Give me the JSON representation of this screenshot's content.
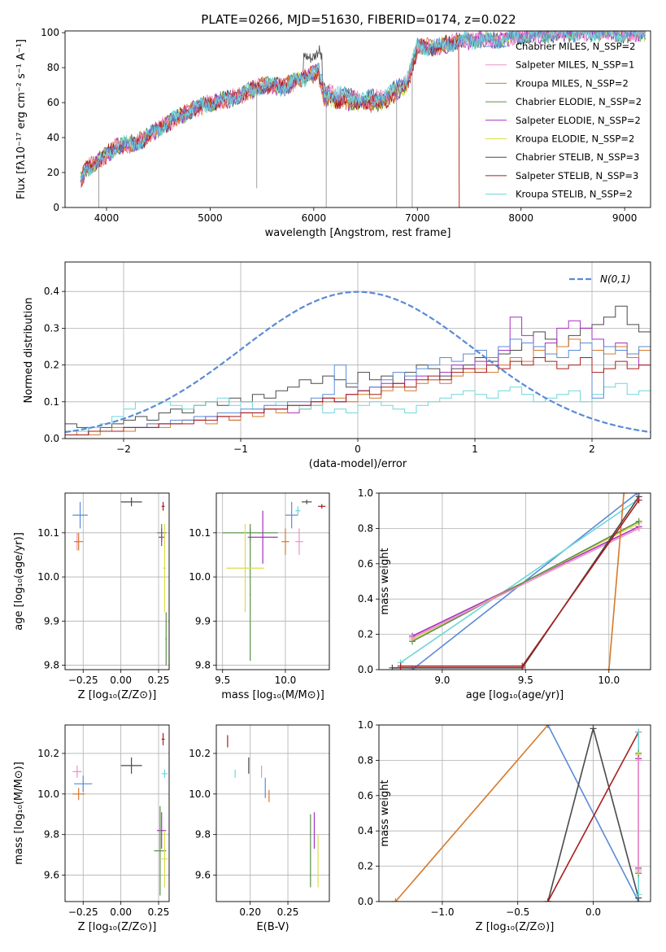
{
  "colors": {
    "chabrier_miles": "#5b8ad6",
    "salpeter_miles": "#ef8fc8",
    "kroupa_miles": "#d6792b",
    "chabrier_elodie": "#5a8f4a",
    "salpeter_elodie": "#a72fc1",
    "kroupa_elodie": "#d9de4a",
    "chabrier_stelib": "#4a4a4a",
    "salpeter_stelib": "#a81d1d",
    "kroupa_stelib": "#6fd6d9",
    "gauss": "#5b8ad6"
  },
  "chart_data": [
    {
      "type": "line",
      "title": "PLATE=0266, MJD=51630, FIBERID=0174, z=0.022",
      "xlabel": "wavelength [Angstrom, rest frame]",
      "ylabel": "Flux [fλ10⁻¹⁷ erg cm⁻² s⁻¹ A⁻¹]",
      "xlim": [
        3600,
        9250
      ],
      "ylim": [
        0,
        101
      ],
      "xticks": [
        4000,
        5000,
        6000,
        7000,
        8000,
        9000
      ],
      "yticks": [
        0,
        20,
        40,
        60,
        80,
        100
      ],
      "grid": false,
      "legend_position": "top-right",
      "legend": [
        "Chabrier MILES, N_SSP=2",
        "Salpeter MILES, N_SSP=1",
        "Kroupa MILES, N_SSP=2",
        "Chabrier ELODIE, N_SSP=2",
        "Salpeter ELODIE, N_SSP=2",
        "Kroupa ELODIE, N_SSP=2",
        "Chabrier STELIB, N_SSP=3",
        "Salpeter STELIB, N_SSP=3",
        "Kroupa STELIB, N_SSP=2"
      ],
      "series_envelope": {
        "x": [
          3750,
          3800,
          3900,
          4000,
          4100,
          4300,
          4500,
          4700,
          4900,
          5100,
          5300,
          5500,
          5700,
          5900,
          6050,
          6100,
          6300,
          6500,
          6700,
          6900,
          7000,
          7200,
          7400,
          7600,
          7800,
          8000,
          8200,
          8500,
          8800,
          9000,
          9200
        ],
        "y": [
          15,
          22,
          26,
          30,
          35,
          37,
          45,
          52,
          58,
          61,
          64,
          70,
          69,
          74,
          78,
          66,
          64,
          62,
          64,
          74,
          92,
          92,
          95,
          96,
          96,
          98,
          99,
          100,
          100,
          99,
          100
        ]
      }
    },
    {
      "type": "histogram",
      "xlabel": "(data-model)/error",
      "ylabel": "Normed distribution",
      "xlim": [
        -2.5,
        2.5
      ],
      "ylim": [
        0,
        0.48
      ],
      "xticks": [
        -2,
        -1,
        0,
        1,
        2
      ],
      "yticks": [
        0.0,
        0.1,
        0.2,
        0.3,
        0.4
      ],
      "grid": true,
      "legend_position": "top-right",
      "legend": [
        "N(0,1)"
      ],
      "gauss": {
        "mu": 0,
        "sigma": 1
      },
      "bin_width": 0.1,
      "hist_start": -2.5,
      "hist_levels": {
        "chabrier_stelib": [
          0.04,
          0.03,
          0.02,
          0.03,
          0.04,
          0.05,
          0.06,
          0.05,
          0.07,
          0.08,
          0.07,
          0.09,
          0.1,
          0.09,
          0.11,
          0.1,
          0.12,
          0.11,
          0.13,
          0.14,
          0.16,
          0.15,
          0.17,
          0.16,
          0.14,
          0.18,
          0.16,
          0.17,
          0.15,
          0.18,
          0.2,
          0.19,
          0.17,
          0.19,
          0.2,
          0.22,
          0.21,
          0.23,
          0.24,
          0.26,
          0.29,
          0.27,
          0.25,
          0.28,
          0.3,
          0.31,
          0.33,
          0.36,
          0.31,
          0.29
        ],
        "salpeter_elodie": [
          0.01,
          0.01,
          0.02,
          0.02,
          0.02,
          0.03,
          0.03,
          0.03,
          0.04,
          0.04,
          0.05,
          0.05,
          0.06,
          0.06,
          0.05,
          0.07,
          0.07,
          0.08,
          0.08,
          0.07,
          0.09,
          0.1,
          0.11,
          0.1,
          0.12,
          0.13,
          0.14,
          0.15,
          0.14,
          0.16,
          0.17,
          0.16,
          0.18,
          0.2,
          0.19,
          0.21,
          0.2,
          0.24,
          0.33,
          0.28,
          0.22,
          0.26,
          0.3,
          0.32,
          0.3,
          0.27,
          0.25,
          0.26,
          0.22,
          0.2
        ],
        "kroupa_miles": [
          0.01,
          0.02,
          0.01,
          0.02,
          0.03,
          0.02,
          0.03,
          0.04,
          0.03,
          0.04,
          0.05,
          0.05,
          0.04,
          0.06,
          0.05,
          0.07,
          0.06,
          0.08,
          0.07,
          0.09,
          0.08,
          0.09,
          0.1,
          0.11,
          0.1,
          0.12,
          0.11,
          0.13,
          0.14,
          0.13,
          0.15,
          0.16,
          0.15,
          0.17,
          0.18,
          0.19,
          0.18,
          0.2,
          0.22,
          0.21,
          0.24,
          0.23,
          0.25,
          0.27,
          0.26,
          0.24,
          0.23,
          0.25,
          0.22,
          0.24
        ],
        "kroupa_stelib": [
          0.02,
          0.02,
          0.03,
          0.04,
          0.06,
          0.08,
          0.1,
          0.1,
          0.1,
          0.09,
          0.08,
          0.09,
          0.1,
          0.11,
          0.09,
          0.1,
          0.08,
          0.09,
          0.1,
          0.09,
          0.08,
          0.09,
          0.07,
          0.08,
          0.07,
          0.09,
          0.1,
          0.09,
          0.08,
          0.07,
          0.09,
          0.1,
          0.11,
          0.12,
          0.13,
          0.12,
          0.11,
          0.13,
          0.14,
          0.12,
          0.1,
          0.11,
          0.12,
          0.13,
          0.1,
          0.12,
          0.14,
          0.15,
          0.12,
          0.13
        ],
        "chabrier_miles": [
          0.01,
          0.01,
          0.02,
          0.02,
          0.02,
          0.03,
          0.03,
          0.04,
          0.04,
          0.05,
          0.05,
          0.06,
          0.06,
          0.07,
          0.07,
          0.08,
          0.08,
          0.09,
          0.09,
          0.1,
          0.1,
          0.11,
          0.12,
          0.2,
          0.15,
          0.13,
          0.14,
          0.16,
          0.18,
          0.17,
          0.19,
          0.2,
          0.22,
          0.21,
          0.23,
          0.24,
          0.22,
          0.25,
          0.27,
          0.26,
          0.25,
          0.23,
          0.22,
          0.24,
          0.26,
          0.11,
          0.25,
          0.24,
          0.23,
          0.25
        ],
        "salpeter_stelib": [
          0.01,
          0.01,
          0.02,
          0.02,
          0.02,
          0.03,
          0.03,
          0.03,
          0.04,
          0.04,
          0.04,
          0.05,
          0.05,
          0.06,
          0.06,
          0.07,
          0.07,
          0.08,
          0.08,
          0.09,
          0.09,
          0.1,
          0.11,
          0.1,
          0.12,
          0.13,
          0.12,
          0.14,
          0.15,
          0.14,
          0.16,
          0.17,
          0.16,
          0.18,
          0.19,
          0.18,
          0.2,
          0.19,
          0.21,
          0.2,
          0.22,
          0.21,
          0.19,
          0.2,
          0.22,
          0.18,
          0.19,
          0.21,
          0.19,
          0.2
        ]
      }
    },
    {
      "type": "errorbar",
      "xlabel": "Z [log₁₀(Z/Z⊙)]",
      "ylabel": "age  [log₁₀(age/yr)]",
      "xlim": [
        -0.37,
        0.32
      ],
      "ylim": [
        9.79,
        10.19
      ],
      "xticks": [
        -0.25,
        0.0,
        0.25
      ],
      "yticks": [
        9.8,
        9.9,
        10.0,
        10.1
      ],
      "grid": true,
      "points": [
        {
          "c": "chabrier_miles",
          "x": -0.27,
          "y": 10.14,
          "ex": 0.05,
          "ey": 0.03
        },
        {
          "c": "salpeter_miles",
          "x": -0.29,
          "y": 10.08,
          "ex": 0.01,
          "ey": 0.02
        },
        {
          "c": "kroupa_miles",
          "x": -0.28,
          "y": 10.08,
          "ex": 0.03,
          "ey": 0.02
        },
        {
          "c": "chabrier_stelib",
          "x": 0.07,
          "y": 10.17,
          "ex": 0.07,
          "ey": 0.01
        },
        {
          "c": "salpeter_stelib",
          "x": 0.28,
          "y": 10.16,
          "ex": 0.01,
          "ey": 0.01
        },
        {
          "c": "chabrier_elodie",
          "x": 0.27,
          "y": 10.1,
          "ex": 0.03,
          "ey": 0.02
        },
        {
          "c": "salpeter_elodie",
          "x": 0.27,
          "y": 10.09,
          "ex": 0.02,
          "ey": 0.02
        },
        {
          "c": "kroupa_elodie",
          "x": 0.29,
          "y": 10.02,
          "ex": 0.01,
          "ey": 0.1
        },
        {
          "c": "chabrier_elodie",
          "x": 0.3,
          "y": 9.86,
          "ex": 0.005,
          "ey": 0.06
        }
      ]
    },
    {
      "type": "errorbar",
      "xlabel": "mass [log₁₀(M/M⊙)]",
      "ylabel": "",
      "xlim": [
        9.45,
        10.35
      ],
      "ylim": [
        9.79,
        10.19
      ],
      "xticks": [
        9.5,
        10.0
      ],
      "yticks": [
        9.8,
        9.9,
        10.0,
        10.1
      ],
      "grid": true,
      "points": [
        {
          "c": "chabrier_elodie",
          "x": 9.72,
          "y": 10.1,
          "ex": 0.22,
          "ey": 0.02
        },
        {
          "c": "chabrier_elodie",
          "x": 9.72,
          "y": 9.96,
          "ex": 0.005,
          "ey": 0.15
        },
        {
          "c": "kroupa_elodie",
          "x": 9.68,
          "y": 10.02,
          "ex": 0.15,
          "ey": 0.1
        },
        {
          "c": "salpeter_elodie",
          "x": 9.82,
          "y": 10.09,
          "ex": 0.12,
          "ey": 0.06
        },
        {
          "c": "kroupa_miles",
          "x": 10.0,
          "y": 10.08,
          "ex": 0.03,
          "ey": 0.03
        },
        {
          "c": "chabrier_miles",
          "x": 10.05,
          "y": 10.14,
          "ex": 0.05,
          "ey": 0.03
        },
        {
          "c": "salpeter_miles",
          "x": 10.11,
          "y": 10.08,
          "ex": 0.03,
          "ey": 0.03
        },
        {
          "c": "kroupa_stelib",
          "x": 10.1,
          "y": 10.15,
          "ex": 0.02,
          "ey": 0.01
        },
        {
          "c": "chabrier_stelib",
          "x": 10.17,
          "y": 10.17,
          "ex": 0.04,
          "ey": 0.005
        },
        {
          "c": "salpeter_stelib",
          "x": 10.29,
          "y": 10.16,
          "ex": 0.03,
          "ey": 0.005
        }
      ]
    },
    {
      "type": "line",
      "xlabel": "age  [log₁₀(age/yr)]",
      "ylabel": "mass weight",
      "xlim": [
        8.62,
        10.25
      ],
      "ylim": [
        0,
        1
      ],
      "xticks": [
        9.0,
        9.5,
        10.0
      ],
      "yticks": [
        0.0,
        0.2,
        0.4,
        0.6,
        0.8,
        1.0
      ],
      "grid": true,
      "series": [
        {
          "c": "chabrier_miles",
          "x": [
            8.82,
            10.17
          ],
          "y": [
            0.0,
            1.0
          ]
        },
        {
          "c": "kroupa_stelib",
          "x": [
            8.75,
            10.17
          ],
          "y": [
            0.04,
            0.96
          ]
        },
        {
          "c": "salpeter_elodie",
          "x": [
            8.82,
            10.18
          ],
          "y": [
            0.19,
            0.81
          ]
        },
        {
          "c": "kroupa_elodie",
          "x": [
            8.82,
            10.18
          ],
          "y": [
            0.17,
            0.83
          ]
        },
        {
          "c": "chabrier_elodie",
          "x": [
            8.82,
            10.18
          ],
          "y": [
            0.16,
            0.84
          ]
        },
        {
          "c": "salpeter_miles",
          "x": [
            8.82,
            10.18
          ],
          "y": [
            0.18,
            0.8
          ]
        },
        {
          "c": "kroupa_miles",
          "x": [
            10.0,
            10.09
          ],
          "y": [
            0.0,
            1.0
          ]
        },
        {
          "c": "chabrier_stelib",
          "x": [
            8.7,
            9.48,
            10.18
          ],
          "y": [
            0.01,
            0.01,
            0.98
          ]
        },
        {
          "c": "salpeter_stelib",
          "x": [
            8.75,
            9.48,
            10.18
          ],
          "y": [
            0.02,
            0.02,
            0.96
          ]
        }
      ]
    },
    {
      "type": "errorbar",
      "xlabel": "Z [log₁₀(Z/Z⊙)]",
      "ylabel": "mass [log₁₀(M/M⊙)]",
      "xlim": [
        -0.37,
        0.32
      ],
      "ylim": [
        9.47,
        10.34
      ],
      "xticks": [
        -0.25,
        0.0,
        0.25
      ],
      "yticks": [
        9.6,
        9.8,
        10.0,
        10.2
      ],
      "grid": true,
      "points": [
        {
          "c": "chabrier_stelib",
          "x": 0.07,
          "y": 10.14,
          "ex": 0.07,
          "ey": 0.04
        },
        {
          "c": "salpeter_miles",
          "x": -0.29,
          "y": 10.11,
          "ex": 0.03,
          "ey": 0.03
        },
        {
          "c": "chabrier_miles",
          "x": -0.25,
          "y": 10.05,
          "ex": 0.06,
          "ey": 0.04
        },
        {
          "c": "kroupa_miles",
          "x": -0.28,
          "y": 10.0,
          "ex": 0.04,
          "ey": 0.03
        },
        {
          "c": "salpeter_stelib",
          "x": 0.28,
          "y": 10.27,
          "ex": 0.01,
          "ey": 0.03
        },
        {
          "c": "kroupa_stelib",
          "x": 0.29,
          "y": 10.1,
          "ex": 0.02,
          "ey": 0.02
        },
        {
          "c": "salpeter_elodie",
          "x": 0.27,
          "y": 9.82,
          "ex": 0.03,
          "ey": 0.09
        },
        {
          "c": "chabrier_elodie",
          "x": 0.26,
          "y": 9.72,
          "ex": 0.04,
          "ey": 0.22
        },
        {
          "c": "kroupa_elodie",
          "x": 0.29,
          "y": 9.68,
          "ex": 0.02,
          "ey": 0.14
        }
      ]
    },
    {
      "type": "errorbar",
      "xlabel": "E(B-V)",
      "ylabel": "",
      "xlim": [
        0.155,
        0.305
      ],
      "ylim": [
        9.47,
        10.34
      ],
      "xticks": [
        0.2,
        0.25
      ],
      "yticks": [
        9.6,
        9.8,
        10.0,
        10.2
      ],
      "grid": true,
      "points": [
        {
          "c": "salpeter_stelib",
          "x": 0.17,
          "y": 10.26,
          "ex": 0,
          "ey": 0.03
        },
        {
          "c": "kroupa_stelib",
          "x": 0.18,
          "y": 10.1,
          "ex": 0,
          "ey": 0.02
        },
        {
          "c": "chabrier_stelib",
          "x": 0.198,
          "y": 10.14,
          "ex": 0,
          "ey": 0.04
        },
        {
          "c": "salpeter_miles",
          "x": 0.215,
          "y": 10.11,
          "ex": 0,
          "ey": 0.03
        },
        {
          "c": "chabrier_miles",
          "x": 0.22,
          "y": 10.03,
          "ex": 0,
          "ey": 0.05
        },
        {
          "c": "kroupa_miles",
          "x": 0.225,
          "y": 9.99,
          "ex": 0,
          "ey": 0.03
        },
        {
          "c": "chabrier_elodie",
          "x": 0.28,
          "y": 9.72,
          "ex": 0,
          "ey": 0.18
        },
        {
          "c": "salpeter_elodie",
          "x": 0.285,
          "y": 9.82,
          "ex": 0,
          "ey": 0.09
        },
        {
          "c": "kroupa_elodie",
          "x": 0.29,
          "y": 9.67,
          "ex": 0,
          "ey": 0.13
        }
      ]
    },
    {
      "type": "line",
      "xlabel": "Z [log₁₀(Z/Z⊙)]",
      "ylabel": "mass weight",
      "xlim": [
        -1.42,
        0.38
      ],
      "ylim": [
        0,
        1
      ],
      "xticks": [
        -1.0,
        -0.5,
        0.0
      ],
      "yticks": [
        0.0,
        0.2,
        0.4,
        0.6,
        0.8,
        1.0
      ],
      "grid": true,
      "series": [
        {
          "c": "kroupa_miles",
          "x": [
            -1.31,
            -0.3
          ],
          "y": [
            0.0,
            1.0
          ]
        },
        {
          "c": "chabrier_miles",
          "x": [
            -0.3,
            0.3
          ],
          "y": [
            1.0,
            0.0
          ]
        },
        {
          "c": "chabrier_stelib",
          "x": [
            -0.3,
            0.0,
            0.3
          ],
          "y": [
            0.0,
            0.98,
            0.02
          ]
        },
        {
          "c": "salpeter_stelib",
          "x": [
            -0.3,
            0.3
          ],
          "y": [
            0.0,
            0.96
          ]
        },
        {
          "c": "kroupa_stelib",
          "x": [
            0.3,
            0.3
          ],
          "y": [
            0.04,
            0.96
          ]
        },
        {
          "c": "chabrier_elodie",
          "x": [
            0.3,
            0.3
          ],
          "y": [
            0.16,
            0.84
          ]
        },
        {
          "c": "kroupa_elodie",
          "x": [
            0.3,
            0.3
          ],
          "y": [
            0.17,
            0.83
          ]
        },
        {
          "c": "salpeter_elodie",
          "x": [
            0.3,
            0.3
          ],
          "y": [
            0.19,
            0.81
          ]
        },
        {
          "c": "salpeter_miles",
          "x": [
            0.3,
            0.3
          ],
          "y": [
            0.18,
            0.8
          ]
        }
      ]
    }
  ]
}
